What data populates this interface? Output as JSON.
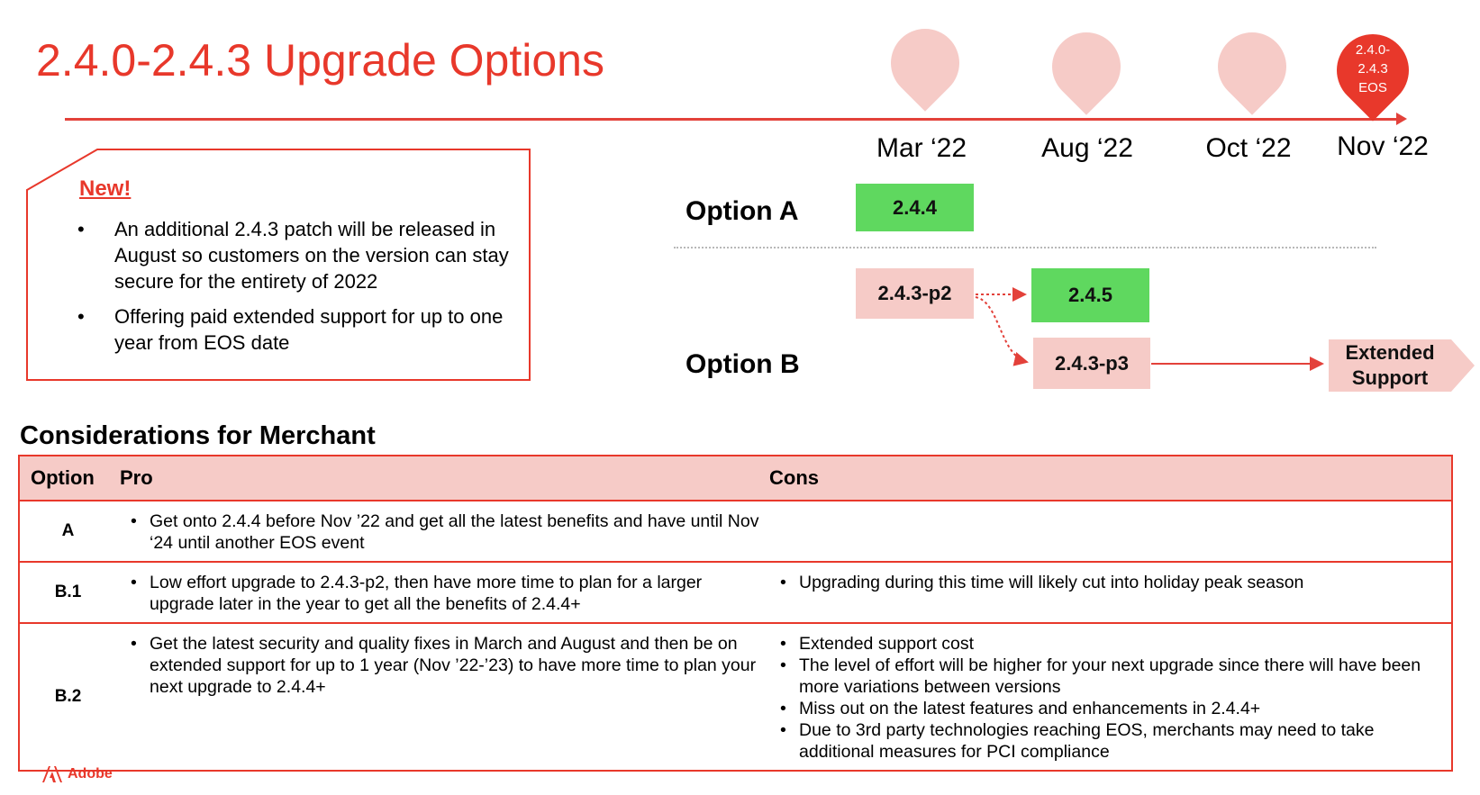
{
  "title": "2.4.0-2.4.3 Upgrade Options",
  "timeline": {
    "months": [
      "Mar ‘22",
      "Aug ‘22",
      "Oct ‘22",
      "Nov ‘22"
    ],
    "eos_label": [
      "2.4.0-",
      "2.4.3",
      "EOS"
    ]
  },
  "new_box": {
    "heading": "New!",
    "bullets": [
      "An additional 2.4.3 patch will be released in August so customers on the version can stay secure for the entirety of 2022",
      "Offering paid extended support for up to one year from EOS date"
    ]
  },
  "options": {
    "option_a": {
      "label": "Option A",
      "box": "2.4.4"
    },
    "option_b": {
      "label": "Option B",
      "box_p2": "2.4.3-p2",
      "box_245": "2.4.5",
      "box_p3": "2.4.3-p3",
      "extended": "Extended Support"
    }
  },
  "colors": {
    "accent": "#e8382b",
    "pink": "#f6cbc7",
    "green": "#5fd85f"
  },
  "considerations": {
    "title": "Considerations for Merchant",
    "headers": [
      "Option",
      "Pro",
      "Cons"
    ],
    "rows": [
      {
        "option": "A",
        "pro": [
          "Get onto 2.4.4 before Nov ’22 and get all the latest benefits and have until Nov ‘24 until another EOS event"
        ],
        "cons": []
      },
      {
        "option": "B.1",
        "pro": [
          "Low effort upgrade to 2.4.3-p2, then have more time to plan for a larger upgrade later in the year to get all the benefits of 2.4.4+"
        ],
        "cons": [
          "Upgrading during this time will likely cut into holiday peak season"
        ]
      },
      {
        "option": "B.2",
        "pro": [
          "Get the latest security and quality fixes in March and August and then be on extended support for up to 1 year (Nov ’22-’23) to have more time to plan your next upgrade to 2.4.4+"
        ],
        "cons": [
          "Extended support cost",
          "The level of effort will be higher for your next upgrade since there will have been more variations between versions",
          "Miss out on the latest features and enhancements in 2.4.4+",
          "Due to 3rd party technologies reaching EOS, merchants may need to take additional measures for PCI compliance"
        ]
      }
    ]
  },
  "footer": {
    "brand": "Adobe"
  }
}
